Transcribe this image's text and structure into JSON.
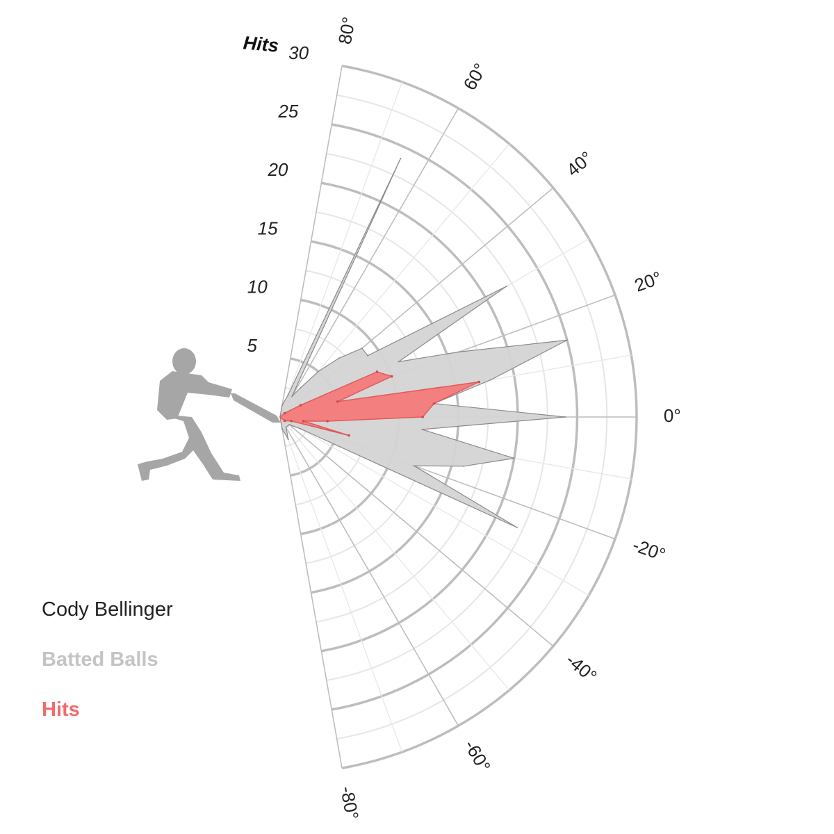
{
  "chart_data": {
    "type": "radar",
    "subject": "Cody Bellinger",
    "radial_axis": {
      "title": "Hits",
      "range": [
        0,
        30
      ],
      "tick_labels": [
        "5",
        "10",
        "15",
        "20",
        "25",
        "30"
      ]
    },
    "angular_axis": {
      "range": [
        -80,
        80
      ],
      "tick_labels": [
        "80°",
        "60°",
        "40°",
        "20°",
        "0°",
        "-20°",
        "-40°",
        "-60°",
        "-80°"
      ]
    },
    "legend": {
      "placement": "bottom-left",
      "entries": [
        "Cody Bellinger",
        "Batted Balls",
        "Hits"
      ]
    },
    "series": [
      {
        "name": "Batted Balls",
        "color": "#d4d4d4",
        "points": [
          {
            "angle": 80,
            "value": 1
          },
          {
            "angle": 70,
            "value": 2
          },
          {
            "angle": 65,
            "value": 24
          },
          {
            "angle": 60,
            "value": 2
          },
          {
            "angle": 55,
            "value": 3
          },
          {
            "angle": 50,
            "value": 5
          },
          {
            "angle": 45,
            "value": 7
          },
          {
            "angle": 40,
            "value": 9
          },
          {
            "angle": 35,
            "value": 9
          },
          {
            "angle": 30,
            "value": 22
          },
          {
            "angle": 25,
            "value": 11
          },
          {
            "angle": 20,
            "value": 16
          },
          {
            "angle": 15,
            "value": 25
          },
          {
            "angle": 10,
            "value": 18
          },
          {
            "angle": 5,
            "value": 13
          },
          {
            "angle": 0,
            "value": 24
          },
          {
            "angle": -5,
            "value": 12
          },
          {
            "angle": -10,
            "value": 20
          },
          {
            "angle": -15,
            "value": 16
          },
          {
            "angle": -20,
            "value": 12
          },
          {
            "angle": -25,
            "value": 22
          },
          {
            "angle": -30,
            "value": 2
          },
          {
            "angle": -40,
            "value": 1
          },
          {
            "angle": -50,
            "value": 1
          },
          {
            "angle": -60,
            "value": 1
          },
          {
            "angle": -70,
            "value": 2
          },
          {
            "angle": -80,
            "value": 1
          }
        ]
      },
      {
        "name": "Hits",
        "color": "#f47a7a",
        "points": [
          {
            "angle": 40,
            "value": 0.5
          },
          {
            "angle": 30,
            "value": 2
          },
          {
            "angle": 25,
            "value": 9
          },
          {
            "angle": 20,
            "value": 10
          },
          {
            "angle": 15,
            "value": 5
          },
          {
            "angle": 10,
            "value": 17
          },
          {
            "angle": 5,
            "value": 13
          },
          {
            "angle": 0,
            "value": 12
          },
          {
            "angle": -5,
            "value": 4
          },
          {
            "angle": -10,
            "value": 2
          },
          {
            "angle": -15,
            "value": 6
          },
          {
            "angle": -20,
            "value": 1
          },
          {
            "angle": -40,
            "value": 0.5
          }
        ]
      }
    ]
  },
  "colors": {
    "ring": "#bdbdbd",
    "silhouette": "#a6a6a6"
  },
  "icons": {
    "batter": "batter-silhouette-icon"
  }
}
